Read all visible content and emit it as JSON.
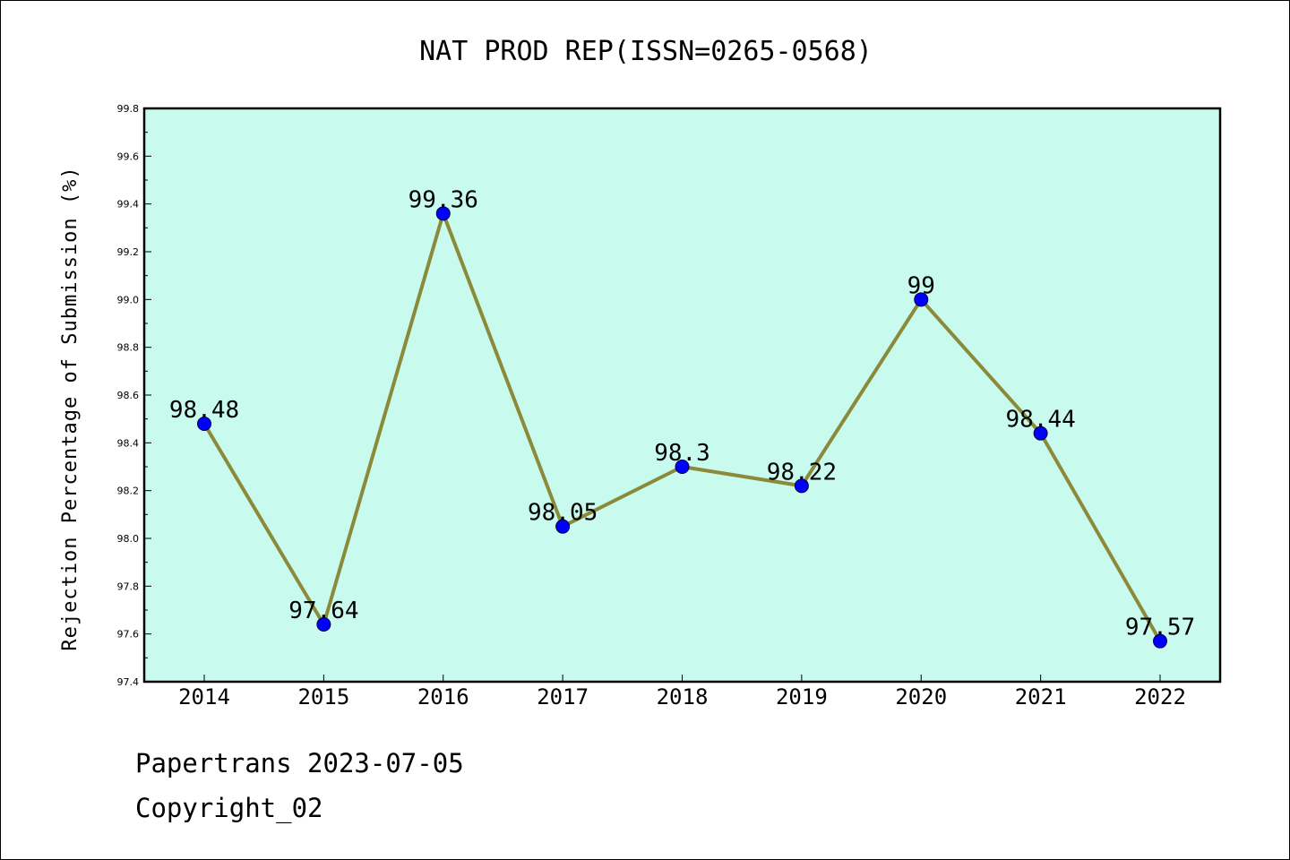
{
  "chart_data": {
    "type": "line",
    "title": "NAT PROD REP(ISSN=0265-0568)",
    "xlabel": "",
    "ylabel": "Rejection Percentage of Submission (%)",
    "categories": [
      "2014",
      "2015",
      "2016",
      "2017",
      "2018",
      "2019",
      "2020",
      "2021",
      "2022"
    ],
    "series": [
      {
        "values": [
          98.48,
          97.64,
          99.36,
          98.05,
          98.3,
          98.22,
          99,
          98.44,
          97.57
        ],
        "labels": [
          "98.48",
          "97.64",
          "99.36",
          "98.05",
          "98.3",
          "98.22",
          "99",
          "98.44",
          "97.57"
        ]
      }
    ],
    "ylim": [
      97.4,
      99.8
    ],
    "yticks": [
      "97.4",
      "97.6",
      "97.8",
      "98.0",
      "98.2",
      "98.4",
      "98.6",
      "98.8",
      "99.0",
      "99.2",
      "99.4",
      "99.6",
      "99.8"
    ],
    "grid": false,
    "colors": {
      "plot_background": "#c8fbee",
      "line": "#8b8a3a",
      "marker": "#0000ff"
    }
  },
  "footer": {
    "line1": "Papertrans 2023-07-05",
    "line2": "Copyright_02"
  }
}
